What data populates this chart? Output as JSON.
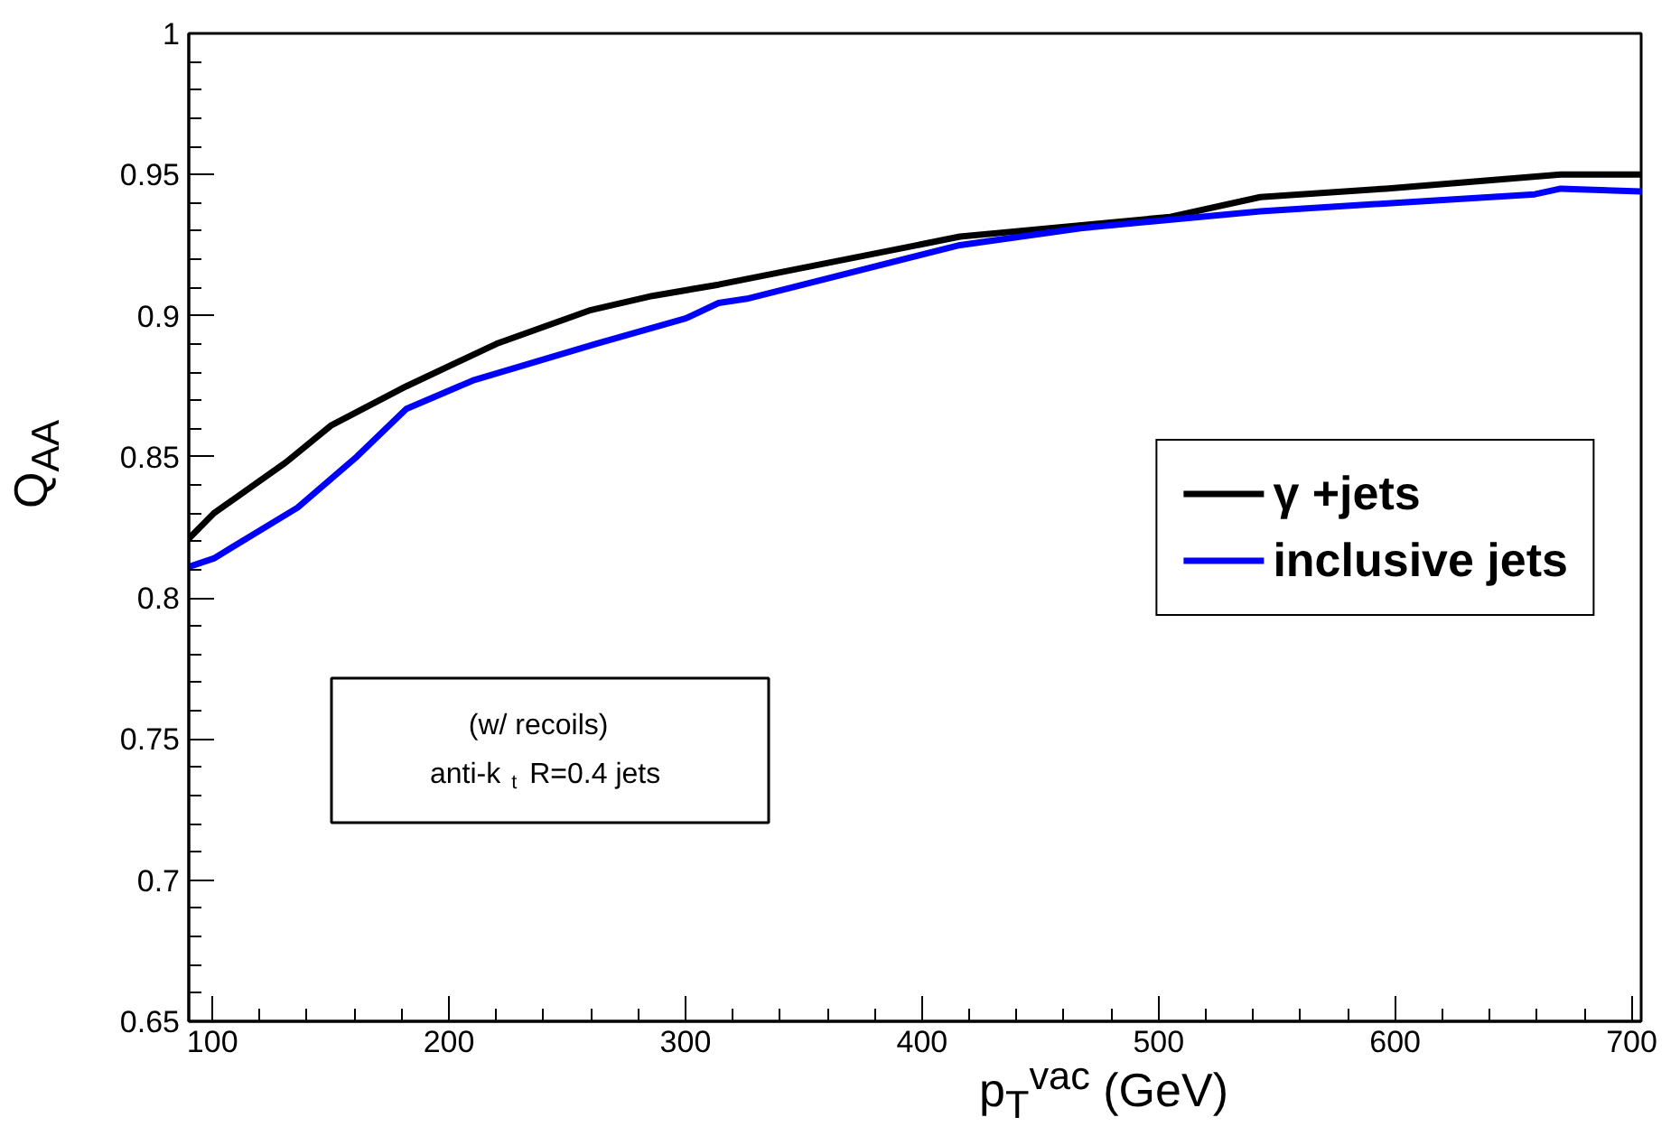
{
  "chart_data": {
    "type": "line",
    "xlabel": "p$_{T}$$^{vac}$ (GeV)",
    "ylabel": "Q$_{AA}$",
    "xlim": [
      90,
      704
    ],
    "ylim": [
      0.65,
      1
    ],
    "xticks": [
      100,
      200,
      300,
      400,
      500,
      600,
      700
    ],
    "yticks": [
      0.65,
      0.7,
      0.75,
      0.8,
      0.85,
      0.9,
      0.95,
      1
    ],
    "grid": false,
    "legend": "right",
    "line_style": "solid",
    "marker": "none",
    "annotations": [
      "(w/ recoils)",
      "anti-k$_{t}$ R=0.4 jets"
    ],
    "series": [
      {
        "name": "γ +jets",
        "color": "#000000",
        "x": [
          90,
          100.6,
          131,
          150,
          182,
          220,
          260,
          286,
          314,
          326,
          416,
          505,
          543,
          596,
          670,
          704
        ],
        "values": [
          0.821,
          0.83,
          0.848,
          0.861,
          0.875,
          0.89,
          0.902,
          0.907,
          0.911,
          0.913,
          0.928,
          0.935,
          0.942,
          0.945,
          0.95,
          0.95
        ]
      },
      {
        "name": "inclusive jets",
        "color": "#0000ff",
        "x": [
          90,
          100.6,
          136,
          161,
          182,
          210,
          262,
          300,
          314,
          326,
          416,
          467,
          543,
          659,
          670,
          704
        ],
        "values": [
          0.811,
          0.814,
          0.832,
          0.85,
          0.867,
          0.877,
          0.89,
          0.899,
          0.9045,
          0.906,
          0.925,
          0.931,
          0.937,
          0.943,
          0.945,
          0.944
        ]
      }
    ]
  }
}
